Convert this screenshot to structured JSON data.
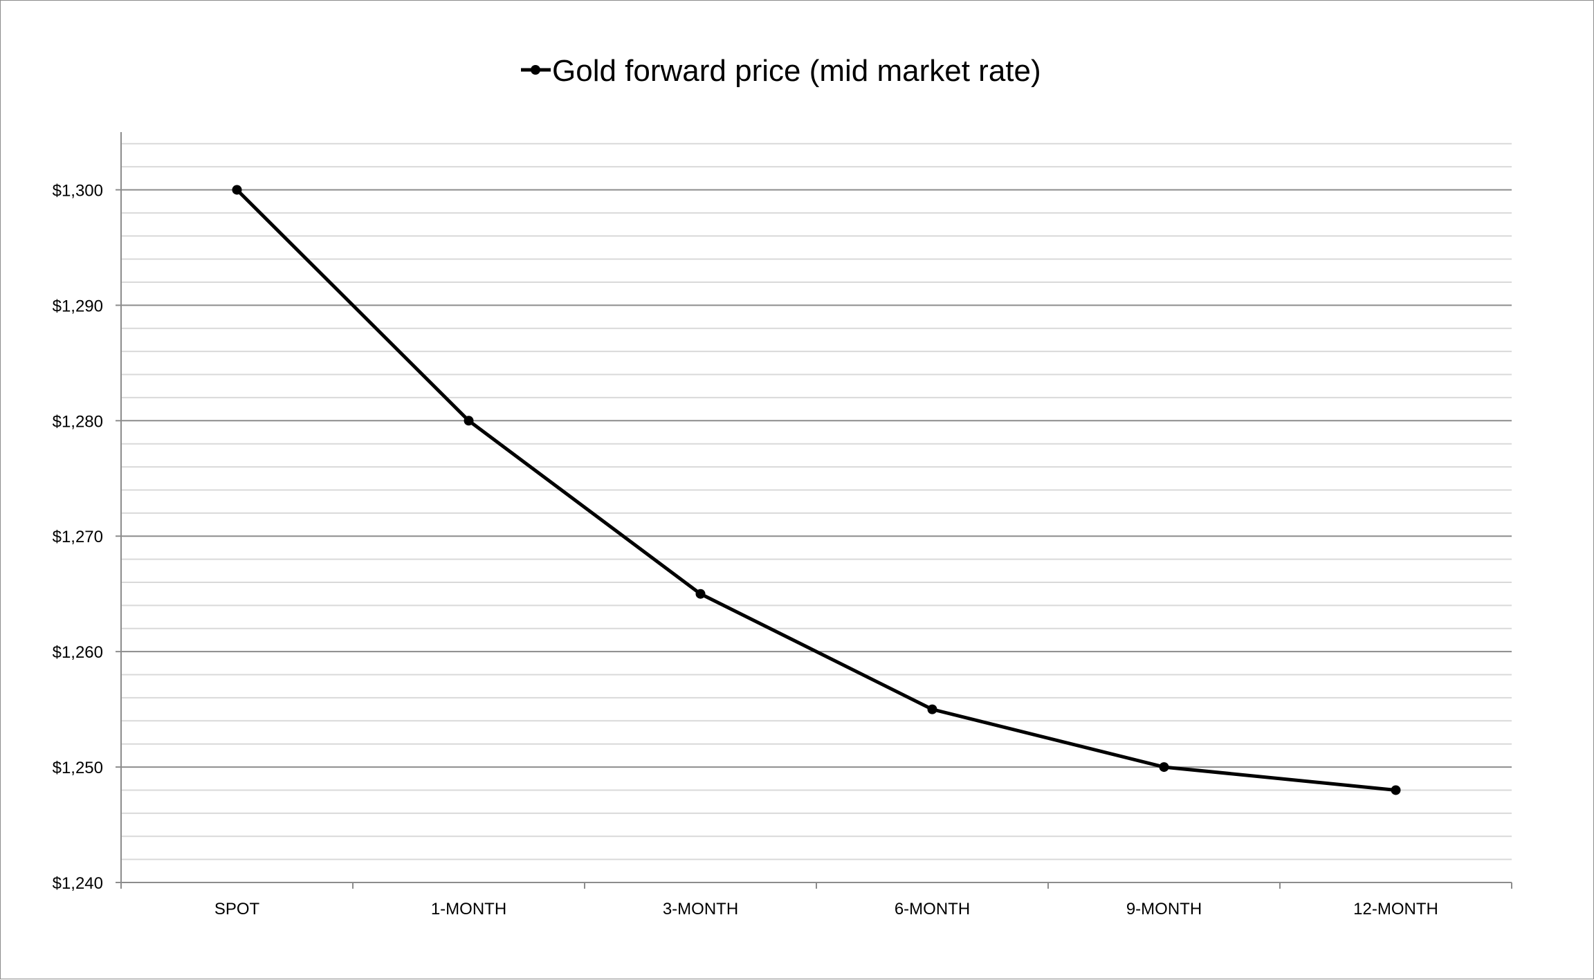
{
  "chart_data": {
    "type": "line",
    "title": "",
    "xlabel": "",
    "ylabel": "",
    "categories": [
      "SPOT",
      "1-MONTH",
      "3-MONTH",
      "6-MONTH",
      "9-MONTH",
      "12-MONTH"
    ],
    "series": [
      {
        "name": "Gold forward price (mid market rate)",
        "values": [
          1300,
          1280,
          1265,
          1255,
          1250,
          1248
        ],
        "color": "#000000",
        "marker": "circle"
      }
    ],
    "ylim": [
      1240,
      1305
    ],
    "yticks": [
      1240,
      1250,
      1260,
      1270,
      1280,
      1290,
      1300
    ],
    "ytick_labels": [
      "$1,240",
      "$1,250",
      "$1,260",
      "$1,270",
      "$1,280",
      "$1,290",
      "$1,300"
    ],
    "minor_gridline_step": 2,
    "grid": true,
    "legend_position": "top",
    "colors": {
      "major_grid": "#8c8c8c",
      "minor_grid": "#d9d9d9",
      "axis": "#8c8c8c",
      "line": "#000000"
    }
  }
}
